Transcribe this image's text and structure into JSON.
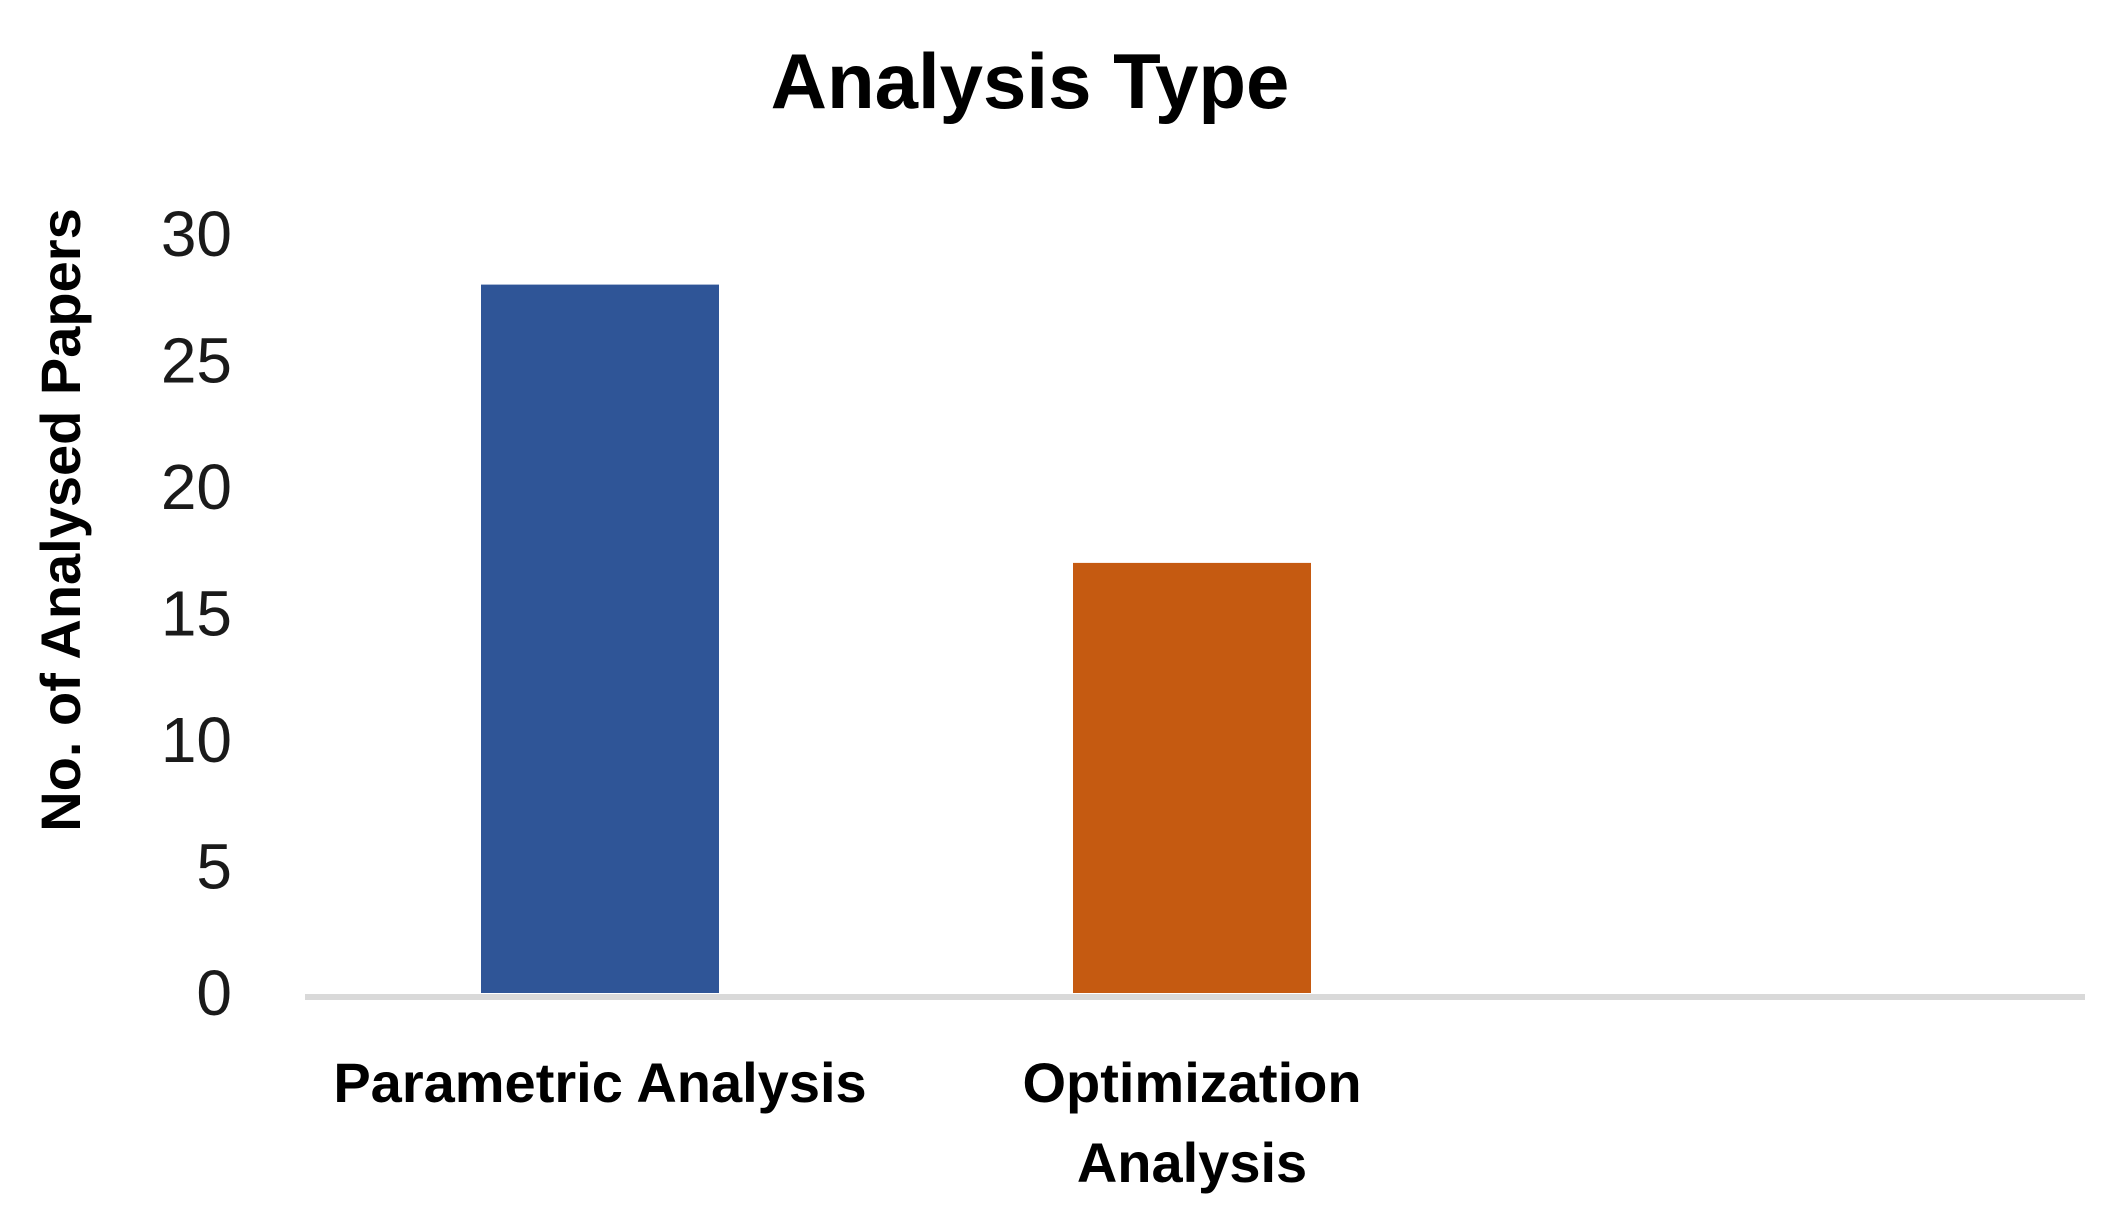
{
  "chart_data": {
    "type": "bar",
    "title": "Analysis Type",
    "xlabel": "",
    "ylabel": "No. of Analysed Papers",
    "categories": [
      [
        "Parametric Analysis"
      ],
      [
        "Optimization",
        "Analysis"
      ]
    ],
    "values": [
      28,
      17
    ],
    "colors": [
      "#2F5597",
      "#C55A11"
    ],
    "ylim": [
      0,
      30
    ],
    "yticks": [
      0,
      5,
      10,
      15,
      20,
      25,
      30
    ],
    "grid": false,
    "legend": "none"
  }
}
